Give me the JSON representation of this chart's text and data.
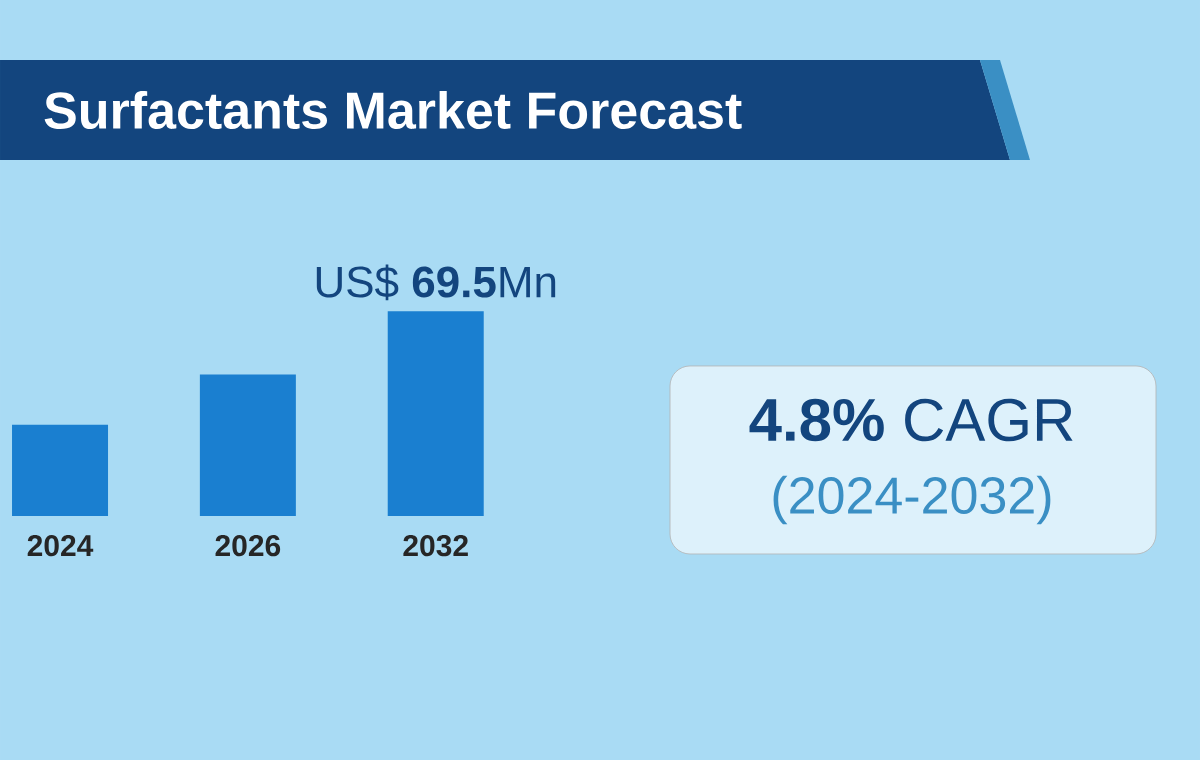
{
  "chart_data": {
    "type": "bar",
    "title": "Surfactants Market Forecast",
    "categories": [
      "2024",
      "2026",
      "2032"
    ],
    "values": [
      31,
      48,
      69.5
    ],
    "color": "#1a7fd0",
    "value_labels": [
      null,
      null,
      "US$ **69.5**Mn"
    ],
    "annotations": [
      "**4.8%** CAGR",
      "(2024-2032)"
    ]
  }
}
